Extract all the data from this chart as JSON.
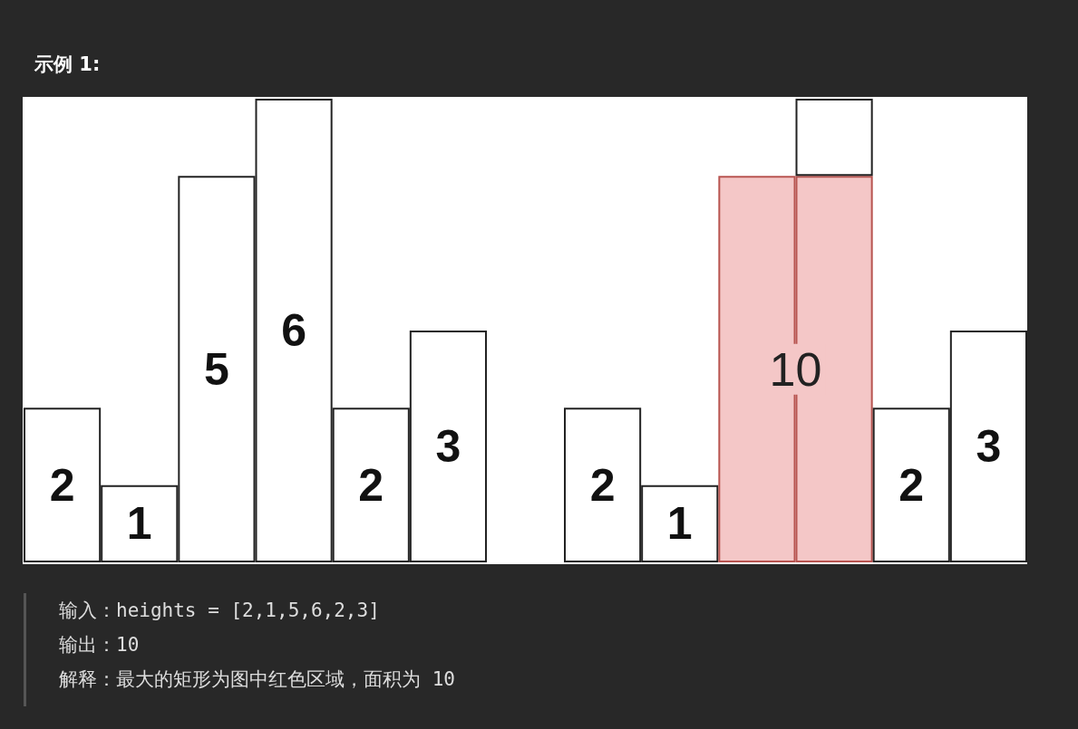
{
  "chart_data": [
    {
      "type": "bar",
      "title": "示例 1:",
      "categories": [
        null,
        null,
        null,
        null,
        null,
        null
      ],
      "values": [
        2,
        1,
        5,
        6,
        2,
        3
      ],
      "color": "#ffffff",
      "data_labels": true
    },
    {
      "type": "bar",
      "categories": [
        null,
        null,
        null,
        null,
        null,
        null
      ],
      "stacked": true,
      "series": [
        {
          "colors": [
            "#ffffff",
            "#ffffff",
            "#f4c7c7",
            "#f4c7c7",
            "#ffffff",
            "#ffffff"
          ],
          "values": [
            2,
            1,
            5,
            5,
            2,
            3
          ],
          "value_labels": [
            "2",
            "1",
            null,
            null,
            "2",
            "3"
          ]
        },
        {
          "color": "#ffffff",
          "values": [
            0,
            0,
            0,
            1,
            0,
            0
          ]
        }
      ],
      "annotations": [
        "10",
        "输入：heights = [2,1,5,6,2,3]",
        "输出：10",
        "解释：最大的矩形为图中红色区域，面积为 10"
      ]
    }
  ]
}
